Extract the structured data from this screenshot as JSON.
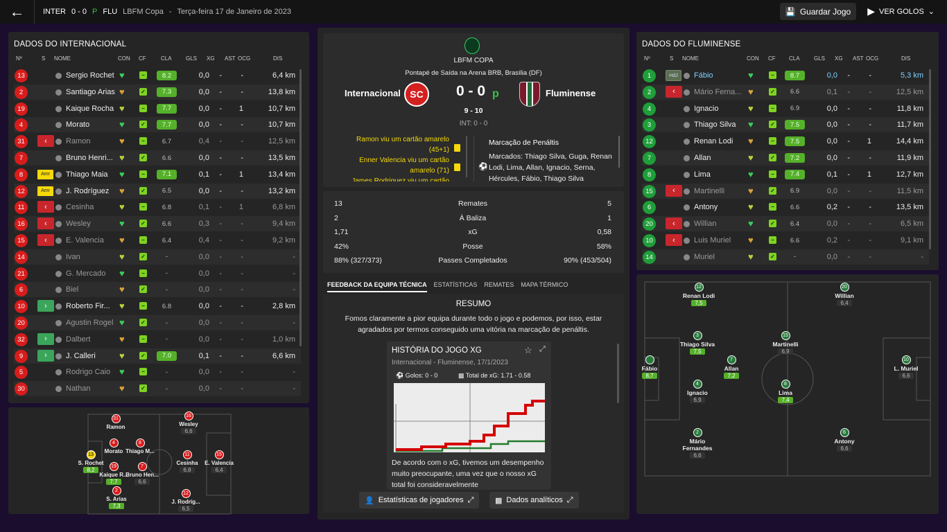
{
  "topbar": {
    "home_team": "INTER",
    "score": "0 - 0",
    "p": "P",
    "away_team": "FLU",
    "competition": "LBFM Copa",
    "sep": "-",
    "date": "Terça-feira 17 de Janeiro de 2023",
    "save": "Guardar Jogo",
    "goals": "VER GOLOS"
  },
  "home_panel": {
    "title": "DADOS DO INTERNACIONAL"
  },
  "away_panel": {
    "title": "DADOS DO FLUMINENSE"
  },
  "columns": {
    "no": "Nº",
    "s": "S",
    "name": "NOME",
    "con": "CON",
    "cf": "CF",
    "cla": "CLA",
    "gls": "GLS",
    "xg": "XG",
    "ast": "AST",
    "ocg": "OCG",
    "dis": "DIS"
  },
  "home_players": [
    {
      "no": "13",
      "s": "",
      "name": "Sergio Rochet",
      "cla": "8.2",
      "gls": "0,0",
      "xg": "-",
      "ast": "-",
      "ocg": "",
      "dis": "6,4 km"
    },
    {
      "no": "2",
      "s": "",
      "name": "Santiago Arias",
      "cla": "7.3",
      "gls": "0,0",
      "xg": "-",
      "ast": "-",
      "ocg": "",
      "dis": "13,8 km"
    },
    {
      "no": "19",
      "s": "",
      "name": "Kaique Rocha",
      "cla": "7.7",
      "gls": "0,0",
      "xg": "-",
      "ast": "1",
      "ocg": "",
      "dis": "10,7 km"
    },
    {
      "no": "4",
      "s": "",
      "name": "Morato",
      "cla": "7.7",
      "gls": "0,0",
      "xg": "-",
      "ast": "-",
      "ocg": "",
      "dis": "10,7 km"
    },
    {
      "no": "31",
      "s": "out",
      "name": "Ramon",
      "cla": "6.7",
      "gls": "0,4",
      "xg": "-",
      "ast": "-",
      "ocg": "",
      "dis": "12,5 km"
    },
    {
      "no": "7",
      "s": "",
      "name": "Bruno Henri...",
      "cla": "6.6",
      "gls": "0,0",
      "xg": "-",
      "ast": "-",
      "ocg": "",
      "dis": "13,5 km"
    },
    {
      "no": "8",
      "s": "Amr",
      "name": "Thiago Maia",
      "cla": "7.1",
      "gls": "0,1",
      "xg": "-",
      "ast": "1",
      "ocg": "",
      "dis": "13,4 km"
    },
    {
      "no": "12",
      "s": "Amr",
      "name": "J. Rodríguez",
      "cla": "6.5",
      "gls": "0,0",
      "xg": "-",
      "ast": "-",
      "ocg": "",
      "dis": "13,2 km"
    },
    {
      "no": "11",
      "s": "out",
      "name": "Cesinha",
      "cla": "6.8",
      "gls": "0,1",
      "xg": "-",
      "ast": "1",
      "ocg": "",
      "dis": "6,8 km"
    },
    {
      "no": "16",
      "s": "out",
      "name": "Wesley",
      "cla": "6.6",
      "gls": "0,3",
      "xg": "-",
      "ast": "-",
      "ocg": "",
      "dis": "9,4 km"
    },
    {
      "no": "15",
      "s": "out",
      "name": "E. Valencia",
      "cla": "6.4",
      "gls": "0,4",
      "xg": "-",
      "ast": "-",
      "ocg": "",
      "dis": "9,2 km"
    },
    {
      "no": "14",
      "s": "",
      "name": "Ivan",
      "cla": "-",
      "gls": "0,0",
      "xg": "-",
      "ast": "-",
      "ocg": "",
      "dis": "-"
    },
    {
      "no": "21",
      "s": "",
      "name": "G. Mercado",
      "cla": "-",
      "gls": "0,0",
      "xg": "-",
      "ast": "-",
      "ocg": "",
      "dis": "-"
    },
    {
      "no": "6",
      "s": "",
      "name": "Biel",
      "cla": "-",
      "gls": "0,0",
      "xg": "-",
      "ast": "-",
      "ocg": "",
      "dis": "-"
    },
    {
      "no": "10",
      "s": "in",
      "name": "Roberto Fir...",
      "cla": "6.8",
      "gls": "0,0",
      "xg": "-",
      "ast": "-",
      "ocg": "",
      "dis": "2,8 km"
    },
    {
      "no": "20",
      "s": "",
      "name": "Agustin Rogel",
      "cla": "-",
      "gls": "0,0",
      "xg": "-",
      "ast": "-",
      "ocg": "",
      "dis": "-"
    },
    {
      "no": "32",
      "s": "in",
      "name": "Dalbert",
      "cla": "-",
      "gls": "0,0",
      "xg": "-",
      "ast": "-",
      "ocg": "",
      "dis": "1,0 km"
    },
    {
      "no": "9",
      "s": "in",
      "name": "J. Calleri",
      "cla": "7.0",
      "gls": "0,1",
      "xg": "-",
      "ast": "-",
      "ocg": "",
      "dis": "6,6 km"
    },
    {
      "no": "5",
      "s": "",
      "name": "Rodrigo Caio",
      "cla": "-",
      "gls": "0,0",
      "xg": "-",
      "ast": "-",
      "ocg": "",
      "dis": "-"
    },
    {
      "no": "30",
      "s": "",
      "name": "Nathan",
      "cla": "-",
      "gls": "0,0",
      "xg": "-",
      "ast": "-",
      "ocg": "",
      "dis": "-"
    }
  ],
  "away_players": [
    {
      "no": "1",
      "s": "HdJ",
      "name": "Fábio",
      "cla": "8.7",
      "gls": "0,0",
      "xg": "-",
      "ast": "-",
      "dis": "5,3 km"
    },
    {
      "no": "2",
      "s": "out",
      "name": "Mário Ferna...",
      "cla": "6.6",
      "gls": "0,1",
      "xg": "-",
      "ast": "-",
      "dis": "12,5 km"
    },
    {
      "no": "4",
      "s": "",
      "name": "Ignacio",
      "cla": "6.9",
      "gls": "0,0",
      "xg": "-",
      "ast": "-",
      "dis": "11,8 km"
    },
    {
      "no": "3",
      "s": "",
      "name": "Thiago Silva",
      "cla": "7.5",
      "gls": "0,0",
      "xg": "-",
      "ast": "-",
      "dis": "11,7 km"
    },
    {
      "no": "12",
      "s": "",
      "name": "Renan Lodi",
      "cla": "7.5",
      "gls": "0,0",
      "xg": "-",
      "ast": "1",
      "dis": "14,4 km"
    },
    {
      "no": "7",
      "s": "",
      "name": "Allan",
      "cla": "7.2",
      "gls": "0,0",
      "xg": "-",
      "ast": "-",
      "dis": "11,9 km"
    },
    {
      "no": "8",
      "s": "",
      "name": "Lima",
      "cla": "7.4",
      "gls": "0,1",
      "xg": "-",
      "ast": "1",
      "dis": "12,7 km"
    },
    {
      "no": "15",
      "s": "out",
      "name": "Martinelli",
      "cla": "6.9",
      "gls": "0,0",
      "xg": "-",
      "ast": "-",
      "dis": "11,5 km"
    },
    {
      "no": "6",
      "s": "",
      "name": "Antony",
      "cla": "6.6",
      "gls": "0,2",
      "xg": "-",
      "ast": "-",
      "dis": "13,5 km"
    },
    {
      "no": "20",
      "s": "out",
      "name": "Willian",
      "cla": "6.4",
      "gls": "0,0",
      "xg": "-",
      "ast": "-",
      "dis": "6,5 km"
    },
    {
      "no": "10",
      "s": "out",
      "name": "Luis Muriel",
      "cla": "6.6",
      "gls": "0,2",
      "xg": "-",
      "ast": "-",
      "dis": "9,1 km"
    },
    {
      "no": "14",
      "s": "",
      "name": "Muriel",
      "cla": "-",
      "gls": "0,0",
      "xg": "-",
      "ast": "-",
      "dis": "-"
    }
  ],
  "match": {
    "competition": "LBFM COPA",
    "venue": "Pontapé de Saída na Arena BRB, Brasília (DF)",
    "home": "Internacional",
    "away": "Fluminense",
    "score": "0 - 0",
    "p": "p",
    "pens": "9 - 10",
    "int": "INT: 0 - 0"
  },
  "events": {
    "left": [
      "Ramon viu um cartão amarelo (45+1)",
      "Enner Valencia viu um cartão amarelo (71)",
      "James Rodriguez viu um cartão"
    ],
    "pen_title": "Marcação de Penáltis",
    "pen_text": "Marcados: Thiago Silva, Guga, Renan Lodi, Lima, Allan, Ignacio, Serna, Hércules, Fábio, Thiago Silva"
  },
  "stats": [
    {
      "h": "13",
      "label": "Remates",
      "a": "5"
    },
    {
      "h": "2",
      "label": "À Baliza",
      "a": "1"
    },
    {
      "h": "1,71",
      "label": "xG",
      "a": "0,58"
    },
    {
      "h": "42%",
      "label": "Posse",
      "a": "58%"
    },
    {
      "h": "88% (327/373)",
      "label": "Passes Completados",
      "a": "90% (453/504)"
    }
  ],
  "tabs": [
    "FEEDBACK DA EQUIPA TÉCNICA",
    "ESTATÍSTICAS",
    "REMATES",
    "MAPA TÉRMICO"
  ],
  "feedback": {
    "title": "RESUMO",
    "text": "Fomos claramente a pior equipa durante todo o jogo e podemos, por isso, estar agradados por termos conseguido uma vitória na marcação de penáltis."
  },
  "xg_card": {
    "title": "HISTÓRIA DO JOGO XG",
    "sub": "Internacional - Fluminense, 17/1/2023",
    "goals": "Golos: 0 - 0",
    "total": "Total de xG: 1.71 - 0.58",
    "text": "De acordo com o xG, tivemos um desempenho muito preocupante, uma vez que o nosso xG total foi consideravelmente"
  },
  "buttons": {
    "players": "Estatísticas de jogadores",
    "analytics": "Dados analíticos"
  },
  "home_pitch": [
    {
      "no": "31",
      "name": "Ramon",
      "rt": "",
      "c": "r"
    },
    {
      "no": "16",
      "name": "Wesley",
      "rt": "6,6",
      "c": "r"
    },
    {
      "no": "4",
      "name": "Morato",
      "rt": "",
      "c": "r"
    },
    {
      "no": "8",
      "name": "Thiago M...",
      "rt": "",
      "c": "r"
    },
    {
      "no": "13",
      "name": "S. Rochet",
      "rt": "8,2",
      "c": "y"
    },
    {
      "no": "19",
      "name": "Kaique R...",
      "rt": "7,7",
      "c": "r"
    },
    {
      "no": "7",
      "name": "Bruno Hen...",
      "rt": "6,6",
      "c": "r"
    },
    {
      "no": "11",
      "name": "Cesinha",
      "rt": "6,8",
      "c": "r"
    },
    {
      "no": "15",
      "name": "E. Valencia",
      "rt": "6,4",
      "c": "r"
    },
    {
      "no": "2",
      "name": "S. Arias",
      "rt": "7,3",
      "c": "r"
    },
    {
      "no": "12",
      "name": "J. Rodríg...",
      "rt": "6,5",
      "c": "r"
    }
  ],
  "away_pitch": [
    {
      "no": "12",
      "name": "Renan Lodi",
      "rt": "7,5",
      "g": true
    },
    {
      "no": "20",
      "name": "Willian",
      "rt": "6,4",
      "g": false
    },
    {
      "no": "3",
      "name": "Thiago Silva",
      "rt": "7,5",
      "g": true
    },
    {
      "no": "15",
      "name": "Martinelli",
      "rt": "6,9",
      "g": false
    },
    {
      "no": "",
      "name": "Fábio",
      "rt": "8,7",
      "g": true
    },
    {
      "no": "7",
      "name": "Allan",
      "rt": "7,2",
      "g": true
    },
    {
      "no": "10",
      "name": "L. Muriel",
      "rt": "6,6",
      "g": false
    },
    {
      "no": "4",
      "name": "Ignacio",
      "rt": "6,9",
      "g": false
    },
    {
      "no": "8",
      "name": "Lima",
      "rt": "7,4",
      "g": true
    },
    {
      "no": "2",
      "name": "Mário Fernandes",
      "rt": "6,6",
      "g": false
    },
    {
      "no": "6",
      "name": "Antony",
      "rt": "6,6",
      "g": false
    }
  ]
}
